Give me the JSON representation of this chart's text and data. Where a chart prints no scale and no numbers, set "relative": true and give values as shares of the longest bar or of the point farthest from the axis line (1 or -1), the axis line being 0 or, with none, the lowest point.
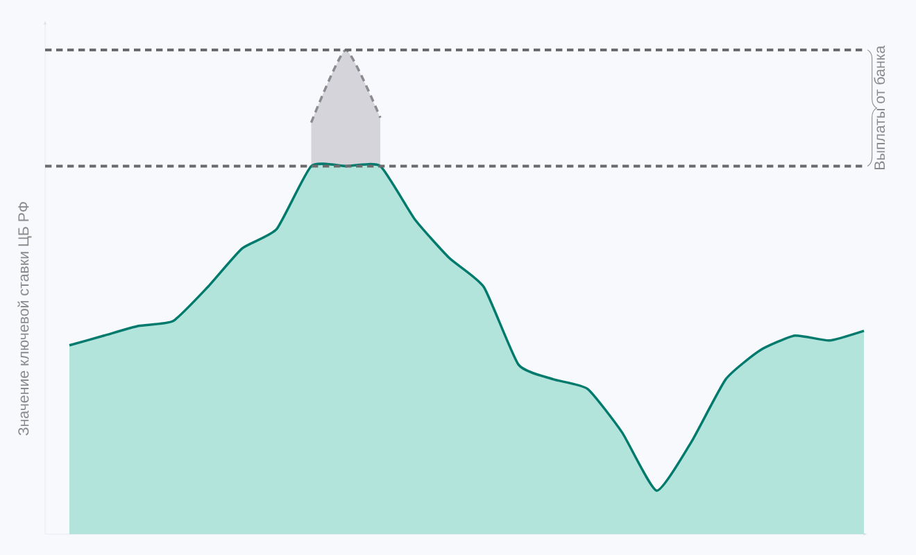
{
  "chart_data": {
    "type": "area",
    "relative": true,
    "ylabel": "Значение ключевой ставки ЦБ РФ",
    "annotations": [
      "Выплаты от банка"
    ],
    "categories": [
      null,
      null,
      null,
      null,
      null,
      null,
      null,
      null,
      null,
      null,
      null,
      null,
      null,
      null,
      null,
      null,
      null,
      null,
      null,
      null,
      null,
      null,
      null,
      null
    ],
    "series": [
      {
        "color": "#8c8c90",
        "line_style": "dashed",
        "values": [
          null,
          null,
          null,
          null,
          null,
          null,
          null,
          0.85,
          1.0,
          0.86,
          null,
          null,
          null,
          null,
          null,
          null,
          null,
          null,
          null,
          null,
          null,
          null,
          null,
          null
        ]
      },
      {
        "color": "#007a6c",
        "values": [
          0.39,
          0.41,
          0.43,
          0.44,
          0.51,
          0.59,
          0.63,
          0.76,
          0.76,
          0.76,
          0.65,
          0.57,
          0.51,
          0.35,
          0.32,
          0.3,
          0.21,
          0.09,
          0.19,
          0.32,
          0.38,
          0.41,
          0.4,
          0.42
        ]
      }
    ],
    "ref_lines": [
      {
        "axis": "y",
        "value": 1.0,
        "color": "#6b6b6b",
        "line_style": "dashed"
      },
      {
        "axis": "y",
        "value": 0.76,
        "color": "#6b6b6b",
        "line_style": "dashed"
      }
    ],
    "line_style": "solid"
  }
}
